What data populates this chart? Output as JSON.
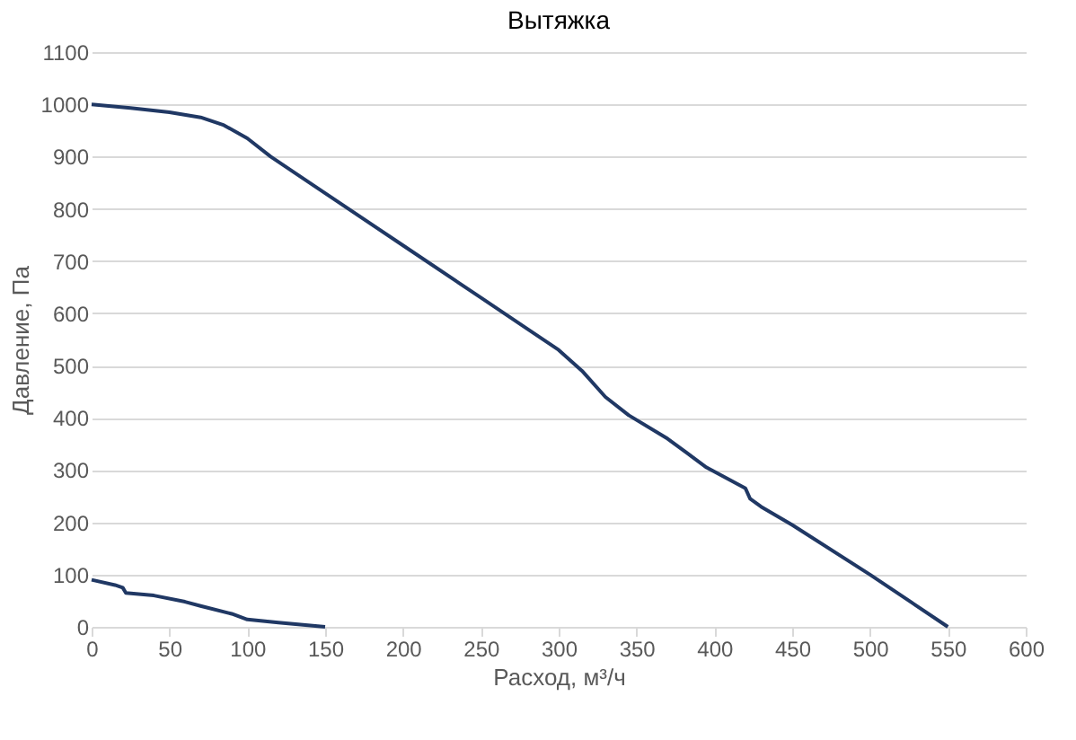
{
  "chart_data": {
    "type": "line",
    "title": "Вытяжка",
    "xlabel": "Расход, м³/ч",
    "ylabel": "Давление, Па",
    "series": [
      {
        "color": "#203864",
        "x": [
          0,
          25,
          50,
          70,
          85,
          100,
          115,
          130,
          150,
          200,
          250,
          280,
          300,
          315,
          330,
          345,
          370,
          395,
          420,
          423,
          430,
          450,
          500,
          550
        ],
        "values": [
          1000,
          993,
          985,
          975,
          960,
          935,
          900,
          870,
          830,
          730,
          630,
          570,
          530,
          490,
          440,
          405,
          360,
          305,
          265,
          245,
          230,
          195,
          100,
          0
        ]
      },
      {
        "color": "#203864",
        "x": [
          0,
          15,
          20,
          22,
          40,
          60,
          70,
          90,
          100,
          120,
          150
        ],
        "values": [
          90,
          80,
          75,
          65,
          60,
          48,
          40,
          25,
          14,
          8,
          0
        ]
      }
    ],
    "xlim": [
      0,
      600
    ],
    "xticks": [
      0,
      50,
      100,
      150,
      200,
      250,
      300,
      350,
      400,
      450,
      500,
      550,
      600
    ],
    "ylim": [
      0,
      1100
    ],
    "yticks": [
      0,
      100,
      200,
      300,
      400,
      500,
      600,
      700,
      800,
      900,
      1000,
      1100
    ],
    "grid": "y",
    "marker": "none",
    "line_style": "solid"
  }
}
